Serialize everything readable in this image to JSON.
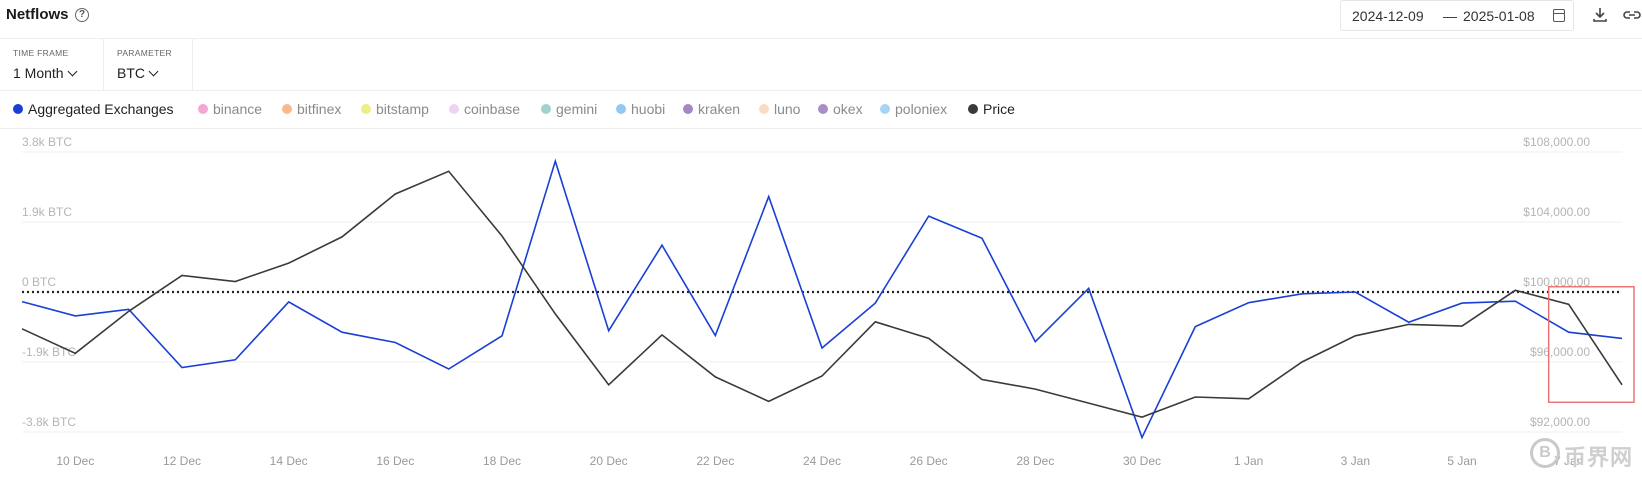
{
  "header": {
    "title": "Netflows",
    "help_icon": "?",
    "date_start": "2024-12-09",
    "date_sep": "—",
    "date_end": "2025-01-08"
  },
  "controls": {
    "timeframe_label": "TIME FRAME",
    "timeframe_value": "1 Month",
    "parameter_label": "PARAMETER",
    "parameter_value": "BTC"
  },
  "legend": [
    {
      "label": "Aggregated Exchanges",
      "color": "#1a3fd6",
      "active": true
    },
    {
      "label": "binance",
      "color": "#f4a6d7",
      "active": false
    },
    {
      "label": "bitfinex",
      "color": "#f9b98f",
      "active": false
    },
    {
      "label": "bitstamp",
      "color": "#eded8a",
      "active": false
    },
    {
      "label": "coinbase",
      "color": "#efd3f5",
      "active": false
    },
    {
      "label": "gemini",
      "color": "#9fd3cf",
      "active": false
    },
    {
      "label": "huobi",
      "color": "#93c8f2",
      "active": false
    },
    {
      "label": "kraken",
      "color": "#a587c6",
      "active": false
    },
    {
      "label": "luno",
      "color": "#f9dcc6",
      "active": false
    },
    {
      "label": "okex",
      "color": "#a78fc6",
      "active": false
    },
    {
      "label": "poloniex",
      "color": "#a6d4f2",
      "active": false
    },
    {
      "label": "Price",
      "color": "#3a3a3a",
      "active": true
    }
  ],
  "watermark": {
    "glyph": "B",
    "text": "币界网"
  },
  "chart_data": {
    "type": "line",
    "title": "",
    "x": [
      "2024-12-09",
      "2024-12-10",
      "2024-12-11",
      "2024-12-12",
      "2024-12-13",
      "2024-12-14",
      "2024-12-15",
      "2024-12-16",
      "2024-12-17",
      "2024-12-18",
      "2024-12-19",
      "2024-12-20",
      "2024-12-21",
      "2024-12-22",
      "2024-12-23",
      "2024-12-24",
      "2024-12-25",
      "2024-12-26",
      "2024-12-27",
      "2024-12-28",
      "2024-12-29",
      "2024-12-30",
      "2024-12-31",
      "2025-01-01",
      "2025-01-02",
      "2025-01-03",
      "2025-01-04",
      "2025-01-05",
      "2025-01-06",
      "2025-01-07",
      "2025-01-08"
    ],
    "x_tick_labels": [
      "10 Dec",
      "12 Dec",
      "14 Dec",
      "16 Dec",
      "18 Dec",
      "20 Dec",
      "22 Dec",
      "24 Dec",
      "26 Dec",
      "28 Dec",
      "30 Dec",
      "1 Jan",
      "3 Jan",
      "5 Jan",
      "7 Jan"
    ],
    "y_left": {
      "ticks": [
        3800,
        1900,
        0,
        -1900,
        -3800
      ],
      "tick_labels": [
        "3.8k BTC",
        "1.9k BTC",
        "0 BTC",
        "-1.9k BTC",
        "-3.8k BTC"
      ],
      "range": [
        -3800,
        3800
      ]
    },
    "y_right": {
      "ticks": [
        108000,
        104000,
        100000,
        96000,
        92000
      ],
      "tick_labels": [
        "$108,000.00",
        "$104,000.00",
        "$100,000.00",
        "$96,000.00",
        "$92,000.00"
      ],
      "range": [
        92000,
        108000
      ]
    },
    "series": [
      {
        "name": "Aggregated Exchanges",
        "axis": "left",
        "color": "#1a3fd6",
        "values": [
          -260,
          -650,
          -470,
          -2050,
          -1840,
          -270,
          -1090,
          -1370,
          -2090,
          -1190,
          3550,
          -1050,
          1270,
          -1180,
          2590,
          -1520,
          -300,
          2060,
          1460,
          -1350,
          100,
          -3950,
          -940,
          -290,
          -50,
          0,
          -820,
          -300,
          -250,
          -1090,
          -1260
        ]
      },
      {
        "name": "Price",
        "axis": "left-scaled",
        "axis_ref": "right",
        "color": "#3a3a3a",
        "values": [
          97900,
          96500,
          98900,
          100950,
          100600,
          101650,
          103150,
          105600,
          106900,
          103200,
          98750,
          94700,
          97550,
          95150,
          93750,
          95200,
          98300,
          97350,
          95000,
          94450,
          93650,
          92850,
          94000,
          93900,
          96000,
          97500,
          98150,
          98050,
          100100,
          99300,
          94700
        ]
      }
    ],
    "zero_line": {
      "value": 0,
      "style": "dotted"
    },
    "highlight_box": {
      "from": "2025-01-07",
      "to": "2025-01-08",
      "color": "#e86f6f"
    },
    "grid": "horizontal",
    "legend_position": "top"
  }
}
